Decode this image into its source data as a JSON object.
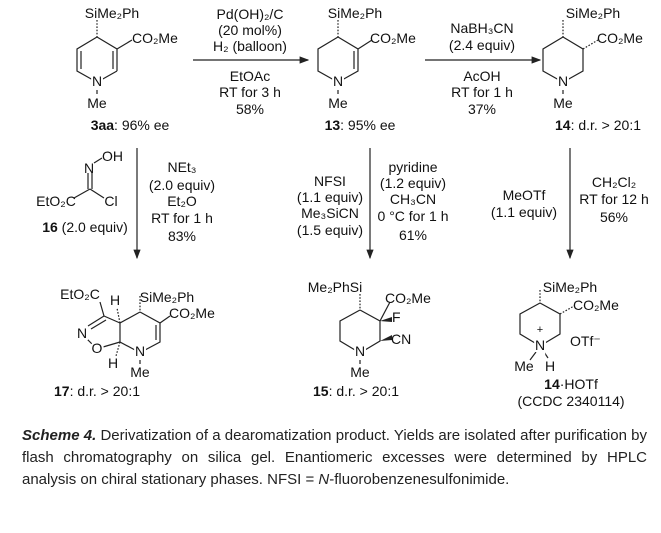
{
  "compounds": {
    "c3aa": {
      "si": "SiMe₂Ph",
      "ester": "CO₂Me",
      "n": "N",
      "me": "Me",
      "id": "3aa",
      "note": ": 96% ee"
    },
    "c13": {
      "si": "SiMe₂Ph",
      "ester": "CO₂Me",
      "n": "N",
      "me": "Me",
      "id": "13",
      "note": ": 95% ee"
    },
    "c14": {
      "si": "SiMe₂Ph",
      "ester": "CO₂Me",
      "n": "N",
      "me": "Me",
      "id": "14",
      "note": ": d.r. > 20:1"
    },
    "c16": {
      "oh": "OH",
      "n": "N",
      "ester": "EtO₂C",
      "cl": "Cl",
      "id": "16",
      "note": " (2.0 equiv)"
    },
    "c17": {
      "ester_left": "EtO₂C",
      "h_top": "H",
      "si": "SiMe₂Ph",
      "ester": "CO₂Me",
      "n_ring": "N",
      "o": "O",
      "h_bottom": "H",
      "n": "N",
      "me": "Me",
      "id": "17",
      "note": ": d.r. > 20:1"
    },
    "c15": {
      "si": "Me₂PhSi",
      "ester": "CO₂Me",
      "f": "F",
      "cn": "CN",
      "n": "N",
      "me": "Me",
      "id": "15",
      "note": ": d.r. > 20:1"
    },
    "c14hotf": {
      "si": "SiMe₂Ph",
      "ester": "CO₂Me",
      "plus": "+",
      "n": "N",
      "me": "Me",
      "h": "H",
      "otf": "OTf⁻",
      "id": "14",
      "note": "·HOTf",
      "ccdc": "(CCDC 2340114)"
    }
  },
  "reactions": {
    "r1": {
      "above": [
        "Pd(OH)₂/C",
        "(20 mol%)",
        "H₂ (balloon)"
      ],
      "below": [
        "EtOAc",
        "RT for 3 h",
        "58%"
      ]
    },
    "r2": {
      "above": [
        "NaBH₃CN",
        "(2.4 equiv)"
      ],
      "below": [
        "AcOH",
        "RT for 1 h",
        "37%"
      ]
    },
    "r3": {
      "right": [
        "NEt₃",
        "(2.0 equiv)",
        "Et₂O",
        "RT for 1 h",
        "83%"
      ]
    },
    "r4": {
      "left": [
        "NFSI",
        "(1.1 equiv)",
        "Me₃SiCN",
        "(1.5 equiv)"
      ],
      "right": [
        "pyridine",
        "(1.2 equiv)",
        "CH₃CN",
        "0 °C for 1 h",
        "61%"
      ]
    },
    "r5": {
      "left": [
        "MeOTf",
        "(1.1 equiv)"
      ],
      "right": [
        "CH₂Cl₂",
        "RT for 12 h",
        "56%"
      ]
    }
  },
  "caption": {
    "scheme_number": "Scheme 4.",
    "text": " Derivatization of a dearomatization product. Yields are isolated after purification by flash chromatography on silica gel. Enantiomeric excesses were determined by HPLC analysis on chiral stationary phases. NFSI = ",
    "italic_n": "N",
    "text_end": "-fluorobenzenesulfonimide."
  }
}
